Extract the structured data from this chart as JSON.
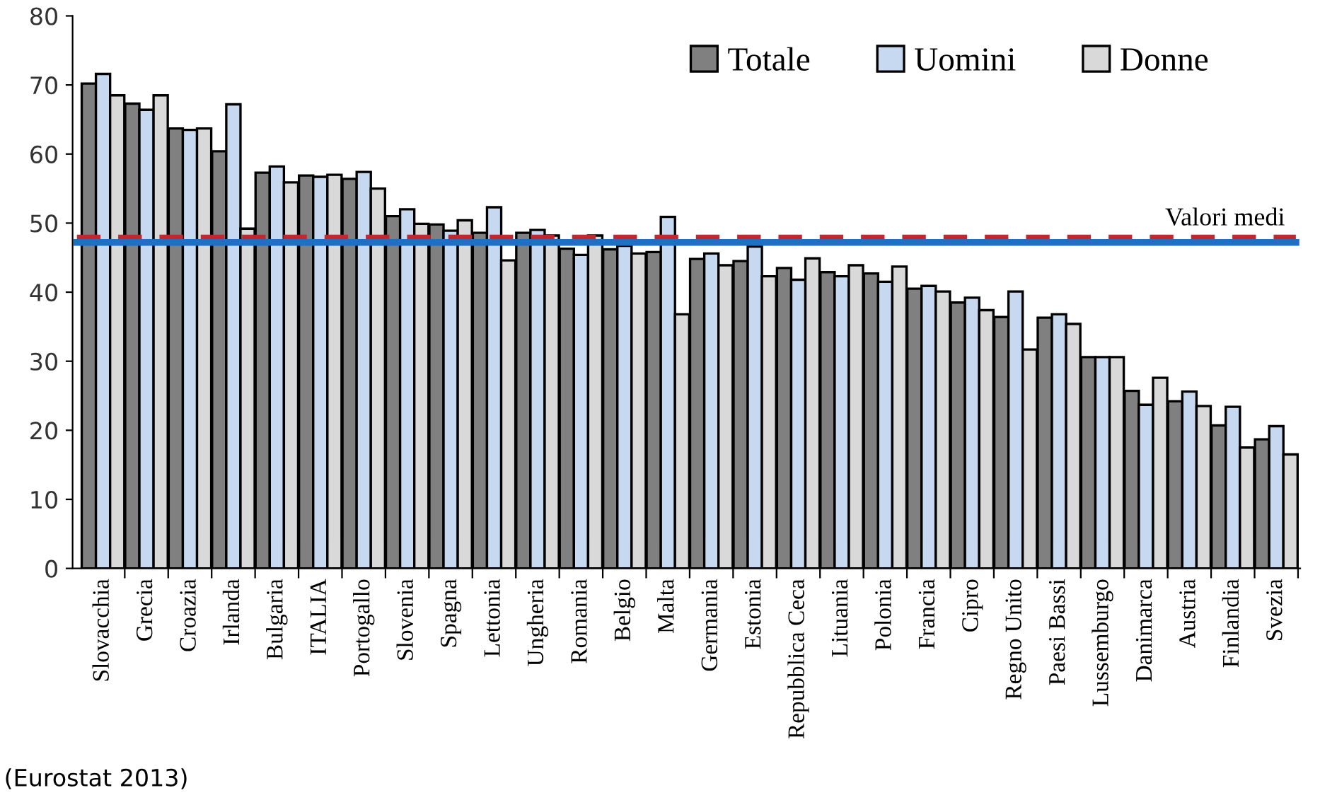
{
  "chart_data": {
    "type": "bar",
    "categories": [
      "Slovacchia",
      "Grecia",
      "Croazia",
      "Irlanda",
      "Bulgaria",
      "ITALIA",
      "Portogallo",
      "Slovenia",
      "Spagna",
      "Lettonia",
      "Ungheria",
      "Romania",
      "Belgio",
      "Malta",
      "Germania",
      "Estonia",
      "Repubblica Ceca",
      "Lituania",
      "Polonia",
      "Francia",
      "Cipro",
      "Regno Unito",
      "Paesi Bassi",
      "Lussemburgo",
      "Danimarca",
      "Austria",
      "Finlandia",
      "Svezia"
    ],
    "series": [
      {
        "name": "Totale",
        "color": "#808080",
        "values": [
          70.2,
          67.3,
          63.7,
          60.4,
          57.3,
          56.9,
          56.4,
          51.0,
          49.8,
          48.6,
          48.6,
          46.3,
          46.2,
          45.8,
          44.8,
          44.5,
          43.5,
          42.9,
          42.7,
          40.5,
          38.5,
          36.4,
          36.3,
          30.6,
          25.7,
          24.2,
          20.7,
          18.7
        ]
      },
      {
        "name": "Uomini",
        "color": "#c6d9f0",
        "values": [
          71.6,
          66.4,
          63.5,
          67.2,
          58.2,
          56.7,
          57.4,
          52.0,
          48.9,
          52.3,
          49.0,
          45.4,
          46.7,
          50.9,
          45.6,
          46.6,
          41.8,
          42.3,
          41.5,
          40.9,
          39.2,
          40.1,
          36.8,
          30.6,
          23.7,
          25.6,
          23.4,
          20.6
        ]
      },
      {
        "name": "Donne",
        "color": "#d9d9d9",
        "values": [
          68.5,
          68.5,
          63.7,
          49.2,
          55.9,
          57.0,
          55.0,
          49.9,
          50.4,
          44.6,
          48.2,
          48.2,
          45.6,
          36.8,
          43.9,
          42.3,
          44.9,
          43.9,
          43.7,
          40.1,
          37.4,
          31.7,
          35.4,
          30.6,
          27.6,
          23.5,
          17.5,
          16.5
        ]
      }
    ],
    "ylim": [
      0,
      80
    ],
    "yticks": [
      0,
      10,
      20,
      30,
      40,
      50,
      60,
      70,
      80
    ],
    "ref_lines": [
      {
        "axis": "y",
        "value": 47.9,
        "label": "Valori medi",
        "color": "#c0282d",
        "line_style": "dashed"
      },
      {
        "axis": "y",
        "value": 47.2,
        "color": "#1f6fc5",
        "line_style": "solid"
      }
    ],
    "annotations": [
      "(Eurostat 2013)"
    ],
    "legend": "top right",
    "grid": false
  }
}
